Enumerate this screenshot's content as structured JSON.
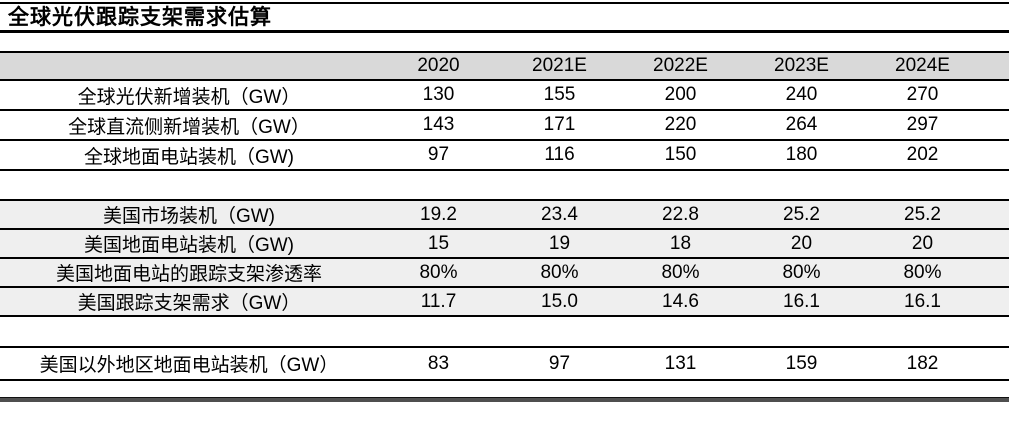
{
  "chart_data": {
    "type": "table",
    "title": "全球光伏跟踪支架需求估算",
    "columns": [
      "2020",
      "2021E",
      "2022E",
      "2023E",
      "2024E"
    ],
    "sections": [
      {
        "rows": [
          {
            "label": "全球光伏新增装机（GW）",
            "values": [
              "130",
              "155",
              "200",
              "240",
              "270"
            ]
          },
          {
            "label": "全球直流侧新增装机（GW）",
            "values": [
              "143",
              "171",
              "220",
              "264",
              "297"
            ]
          },
          {
            "label": "全球地面电站装机（GW)",
            "values": [
              "97",
              "116",
              "150",
              "180",
              "202"
            ]
          }
        ]
      },
      {
        "rows": [
          {
            "label": "美国市场装机（GW)",
            "values": [
              "19.2",
              "23.4",
              "22.8",
              "25.2",
              "25.2"
            ]
          },
          {
            "label": "美国地面电站装机（GW)",
            "values": [
              "15",
              "19",
              "18",
              "20",
              "20"
            ]
          },
          {
            "label": "美国地面电站的跟踪支架渗透率",
            "values": [
              "80%",
              "80%",
              "80%",
              "80%",
              "80%"
            ]
          },
          {
            "label": "美国跟踪支架需求（GW）",
            "values": [
              "11.7",
              "15.0",
              "14.6",
              "16.1",
              "16.1"
            ]
          }
        ]
      },
      {
        "rows": [
          {
            "label": "美国以外地区地面电站装机（GW）",
            "values": [
              "83",
              "97",
              "131",
              "159",
              "182"
            ]
          }
        ]
      }
    ],
    "layout": {
      "header_background": "#d9d9d9",
      "us_section_background": "#efefef",
      "rule_color": "#000000",
      "bottom_bar_color": "#4f4f4f"
    }
  }
}
